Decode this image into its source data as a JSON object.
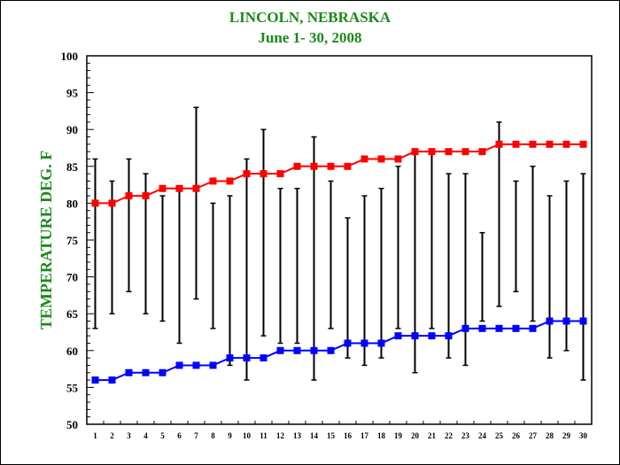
{
  "chart_data": {
    "type": "line",
    "title": "LINCOLN, NEBRASKA",
    "subtitle": "June 1- 30, 2008",
    "xlabel": "",
    "ylabel": "TEMPERATURE DEG. F",
    "ylim": [
      50,
      100
    ],
    "yticks": [
      "50",
      "55",
      "60",
      "65",
      "70",
      "75",
      "80",
      "85",
      "90",
      "95",
      "100"
    ],
    "categories": [
      "1",
      "2",
      "3",
      "4",
      "5",
      "6",
      "7",
      "8",
      "9",
      "10",
      "11",
      "12",
      "13",
      "14",
      "15",
      "16",
      "17",
      "18",
      "19",
      "20",
      "21",
      "22",
      "23",
      "24",
      "25",
      "26",
      "27",
      "28",
      "29",
      "30"
    ],
    "series": [
      {
        "color": "#ff0000",
        "values": [
          80,
          80,
          81,
          81,
          82,
          82,
          82,
          83,
          83,
          84,
          84,
          84,
          85,
          85,
          85,
          85,
          86,
          86,
          86,
          87,
          87,
          87,
          87,
          87,
          88,
          88,
          88,
          88,
          88,
          88
        ]
      },
      {
        "color": "#0000ff",
        "values": [
          56,
          56,
          57,
          57,
          57,
          58,
          58,
          58,
          59,
          59,
          59,
          60,
          60,
          60,
          60,
          61,
          61,
          61,
          62,
          62,
          62,
          62,
          63,
          63,
          63,
          63,
          63,
          64,
          64,
          64
        ]
      }
    ],
    "ranges": [
      {
        "day": "1",
        "high": 86,
        "low": 63
      },
      {
        "day": "2",
        "high": 83,
        "low": 65
      },
      {
        "day": "3",
        "high": 86,
        "low": 68
      },
      {
        "day": "4",
        "high": 84,
        "low": 65
      },
      {
        "day": "5",
        "high": 81,
        "low": 64
      },
      {
        "day": "6",
        "high": 82,
        "low": 61
      },
      {
        "day": "7",
        "high": 93,
        "low": 67
      },
      {
        "day": "8",
        "high": 80,
        "low": 63
      },
      {
        "day": "9",
        "high": 81,
        "low": 58
      },
      {
        "day": "10",
        "high": 86,
        "low": 56
      },
      {
        "day": "11",
        "high": 90,
        "low": 62
      },
      {
        "day": "12",
        "high": 82,
        "low": 61
      },
      {
        "day": "13",
        "high": 82,
        "low": 61
      },
      {
        "day": "14",
        "high": 89,
        "low": 56
      },
      {
        "day": "15",
        "high": 83,
        "low": 63
      },
      {
        "day": "16",
        "high": 78,
        "low": 59
      },
      {
        "day": "17",
        "high": 81,
        "low": 58
      },
      {
        "day": "18",
        "high": 82,
        "low": 59
      },
      {
        "day": "19",
        "high": 85,
        "low": 63
      },
      {
        "day": "20",
        "high": 87,
        "low": 57
      },
      {
        "day": "21",
        "high": 87,
        "low": 63
      },
      {
        "day": "22",
        "high": 84,
        "low": 59
      },
      {
        "day": "23",
        "high": 84,
        "low": 58
      },
      {
        "day": "24",
        "high": 76,
        "low": 64
      },
      {
        "day": "25",
        "high": 91,
        "low": 66
      },
      {
        "day": "26",
        "high": 83,
        "low": 68
      },
      {
        "day": "27",
        "high": 85,
        "low": 64
      },
      {
        "day": "28",
        "high": 81,
        "low": 59
      },
      {
        "day": "29",
        "high": 83,
        "low": 60
      },
      {
        "day": "30",
        "high": 84,
        "low": 56
      }
    ],
    "grid": false
  }
}
